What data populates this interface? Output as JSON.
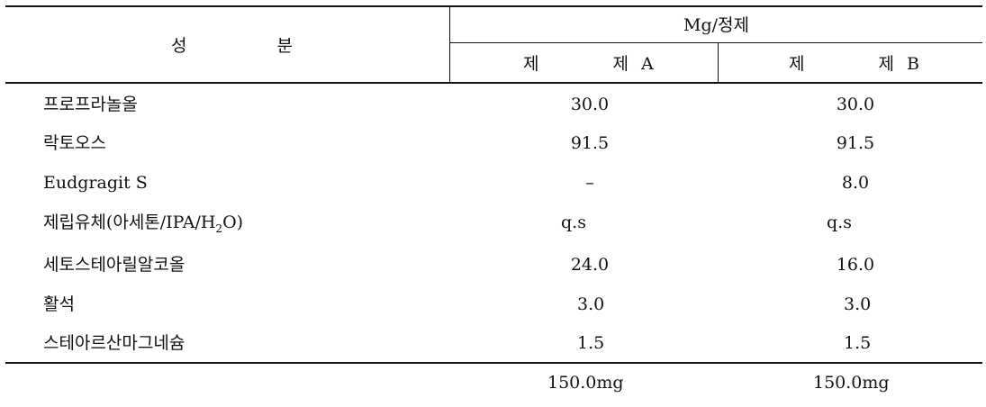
{
  "header": {
    "ingredient_col_a": "성",
    "ingredient_col_b": "분",
    "unit": "Mg/정제",
    "formulation_a_prefix": "제",
    "formulation_a_word": "제",
    "formulation_a_letter": "A",
    "formulation_b_prefix": "제",
    "formulation_b_word": "제",
    "formulation_b_letter": "B"
  },
  "rows": [
    {
      "name": "프로프라놀올",
      "a": "30.0",
      "b": "30.0"
    },
    {
      "name": "락토오스",
      "a": "91.5",
      "b": "91.5"
    },
    {
      "name": "Eudgragit S",
      "a": "–",
      "b": "8.0"
    },
    {
      "name_pre": "제립유체(아세톤/IPA/H",
      "name_sub": "2",
      "name_post": "O)",
      "a": "q.s",
      "b": "q.s"
    },
    {
      "name": "세토스테아릴알코올",
      "a": "24.0",
      "b": "16.0"
    },
    {
      "name": "활석",
      "a": "3.0",
      "b": "3.0"
    },
    {
      "name": "스테아르산마그네슘",
      "a": "1.5",
      "b": "1.5"
    }
  ],
  "totals": {
    "a": "150.0mg",
    "b": "150.0mg"
  }
}
